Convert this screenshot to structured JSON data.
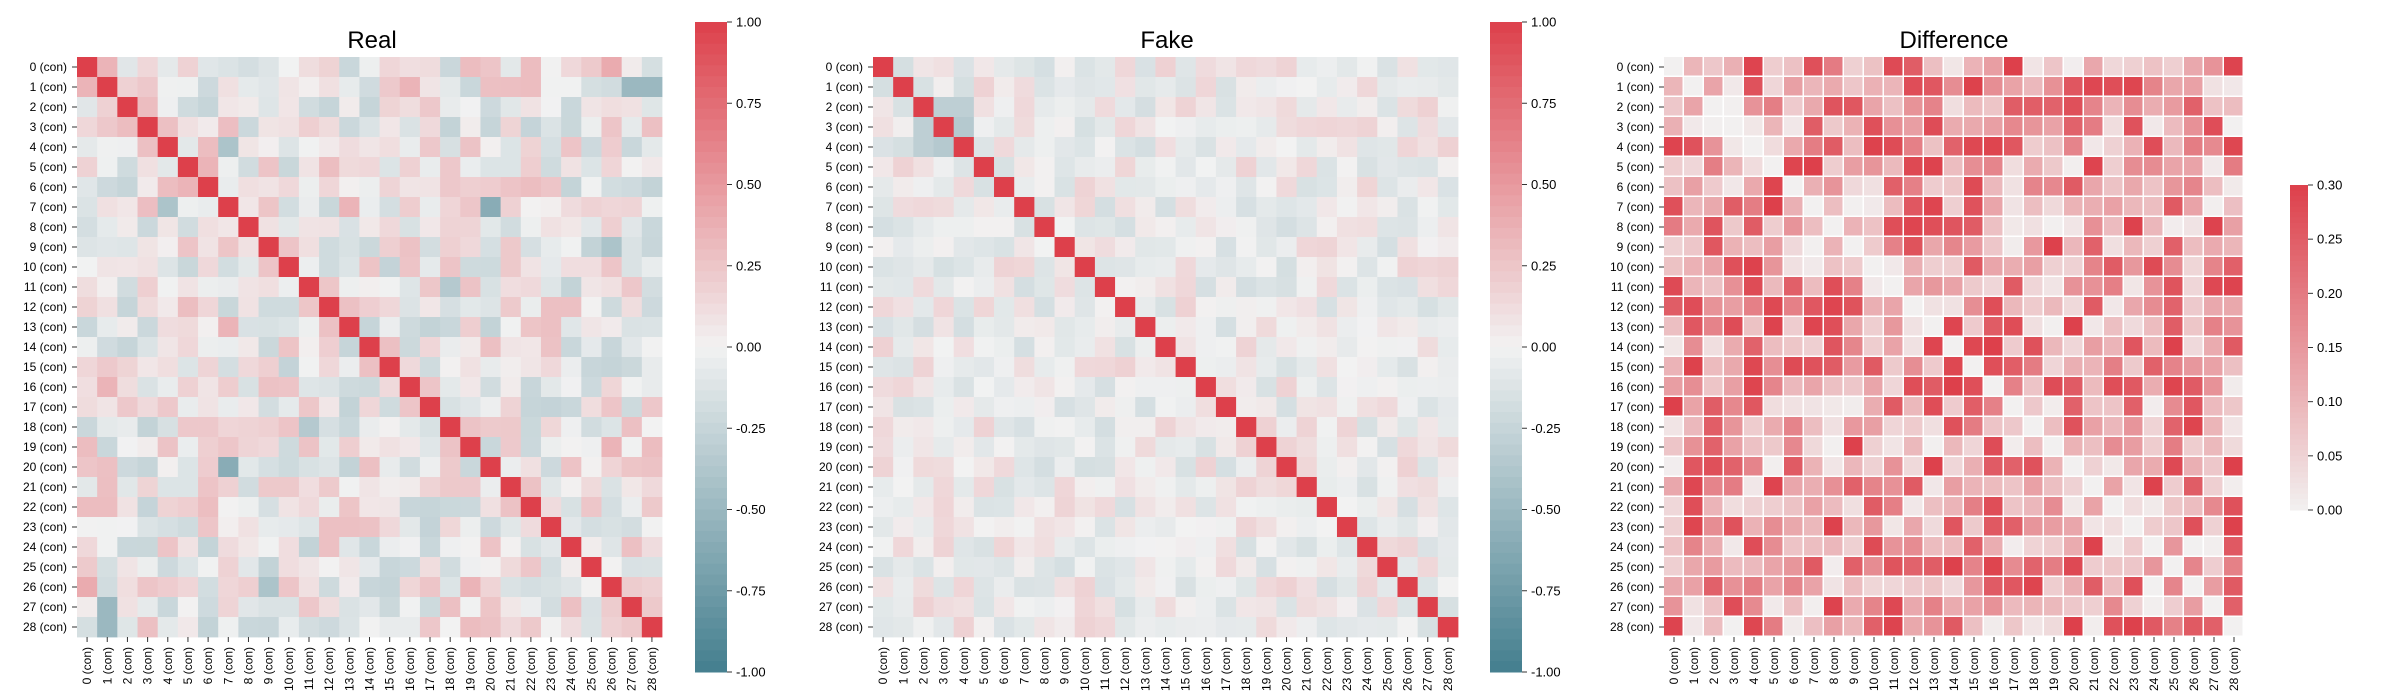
{
  "chart_data": [
    {
      "type": "heatmap",
      "title": "Real",
      "labels": [
        "0 (con)",
        "1 (con)",
        "2 (con)",
        "3 (con)",
        "4 (con)",
        "5 (con)",
        "6 (con)",
        "7 (con)",
        "8 (con)",
        "9 (con)",
        "10 (con)",
        "11 (con)",
        "12 (con)",
        "13 (con)",
        "14 (con)",
        "15 (con)",
        "16 (con)",
        "17 (con)",
        "18 (con)",
        "19 (con)",
        "20 (con)",
        "21 (con)",
        "22 (con)",
        "23 (con)",
        "24 (con)",
        "25 (con)",
        "26 (con)",
        "27 (con)",
        "28 (con)"
      ],
      "diagonal": 1.0,
      "colorbar": {
        "range": [
          -1,
          1
        ],
        "ticks": [
          "1.00",
          "0.75",
          "0.50",
          "0.25",
          "0.00",
          "-0.25",
          "-0.50",
          "-0.75",
          "-1.00"
        ]
      },
      "approximate_offdiagonal": [
        {
          "row": 0,
          "col": 1,
          "value": 0.35
        },
        {
          "row": 0,
          "col": 2,
          "value": -0.1
        },
        {
          "row": 0,
          "col": 19,
          "value": 0.3
        },
        {
          "row": 0,
          "col": 26,
          "value": 0.4
        },
        {
          "row": 1,
          "col": 28,
          "value": -0.5
        },
        {
          "row": 2,
          "col": 3,
          "value": 0.3
        },
        {
          "row": 4,
          "col": 7,
          "value": -0.4
        },
        {
          "row": 6,
          "col": 4,
          "value": 0.3
        },
        {
          "row": 6,
          "col": 5,
          "value": 0.35
        },
        {
          "row": 7,
          "col": 20,
          "value": -0.6
        },
        {
          "row": 7,
          "col": 13,
          "value": 0.35
        },
        {
          "row": 9,
          "col": 26,
          "value": -0.4
        },
        {
          "row": 11,
          "col": 18,
          "value": -0.3
        },
        {
          "row": 12,
          "col": 14,
          "value": 0.2
        },
        {
          "row": 13,
          "col": 7,
          "value": 0.35
        },
        {
          "row": 16,
          "col": 1,
          "value": 0.35
        },
        {
          "row": 18,
          "col": 11,
          "value": -0.35
        },
        {
          "row": 19,
          "col": 0,
          "value": 0.3
        },
        {
          "row": 19,
          "col": 26,
          "value": 0.35
        },
        {
          "row": 19,
          "col": 28,
          "value": 0.3
        },
        {
          "row": 20,
          "col": 7,
          "value": -0.6
        },
        {
          "row": 22,
          "col": 0,
          "value": 0.3
        },
        {
          "row": 22,
          "col": 1,
          "value": 0.3
        },
        {
          "row": 26,
          "col": 0,
          "value": 0.4
        },
        {
          "row": 26,
          "col": 9,
          "value": -0.4
        },
        {
          "row": 27,
          "col": 1,
          "value": -0.5
        }
      ]
    },
    {
      "type": "heatmap",
      "title": "Fake",
      "labels": [
        "0 (con)",
        "1 (con)",
        "2 (con)",
        "3 (con)",
        "4 (con)",
        "5 (con)",
        "6 (con)",
        "7 (con)",
        "8 (con)",
        "9 (con)",
        "10 (con)",
        "11 (con)",
        "12 (con)",
        "13 (con)",
        "14 (con)",
        "15 (con)",
        "16 (con)",
        "17 (con)",
        "18 (con)",
        "19 (con)",
        "20 (con)",
        "21 (con)",
        "22 (con)",
        "23 (con)",
        "24 (con)",
        "25 (con)",
        "26 (con)",
        "27 (con)",
        "28 (con)"
      ],
      "diagonal": 1.0,
      "colorbar": {
        "range": [
          -1,
          1
        ],
        "ticks": [
          "1.00",
          "0.75",
          "0.50",
          "0.25",
          "0.00",
          "-0.25",
          "-0.50",
          "-0.75",
          "-1.00"
        ]
      },
      "approximate_offdiagonal": [
        {
          "row": 2,
          "col": 3,
          "value": -0.3
        },
        {
          "row": 3,
          "col": 4,
          "value": -0.35
        },
        {
          "row": 4,
          "col": 2,
          "value": -0.3
        },
        {
          "row": 3,
          "col": 2,
          "value": -0.3
        }
      ]
    },
    {
      "type": "heatmap",
      "title": "Difference",
      "labels": [
        "0 (con)",
        "1 (con)",
        "2 (con)",
        "3 (con)",
        "4 (con)",
        "5 (con)",
        "6 (con)",
        "7 (con)",
        "8 (con)",
        "9 (con)",
        "10 (con)",
        "11 (con)",
        "12 (con)",
        "13 (con)",
        "14 (con)",
        "15 (con)",
        "16 (con)",
        "17 (con)",
        "18 (con)",
        "19 (con)",
        "20 (con)",
        "21 (con)",
        "22 (con)",
        "23 (con)",
        "24 (con)",
        "25 (con)",
        "26 (con)",
        "27 (con)",
        "28 (con)"
      ],
      "diagonal": 0.0,
      "colorbar": {
        "range": [
          0,
          0.3
        ],
        "ticks": [
          "0.30",
          "0.25",
          "0.20",
          "0.15",
          "0.10",
          "0.05",
          "0.00"
        ]
      },
      "approximate_value_range": [
        0,
        0.3
      ]
    }
  ]
}
